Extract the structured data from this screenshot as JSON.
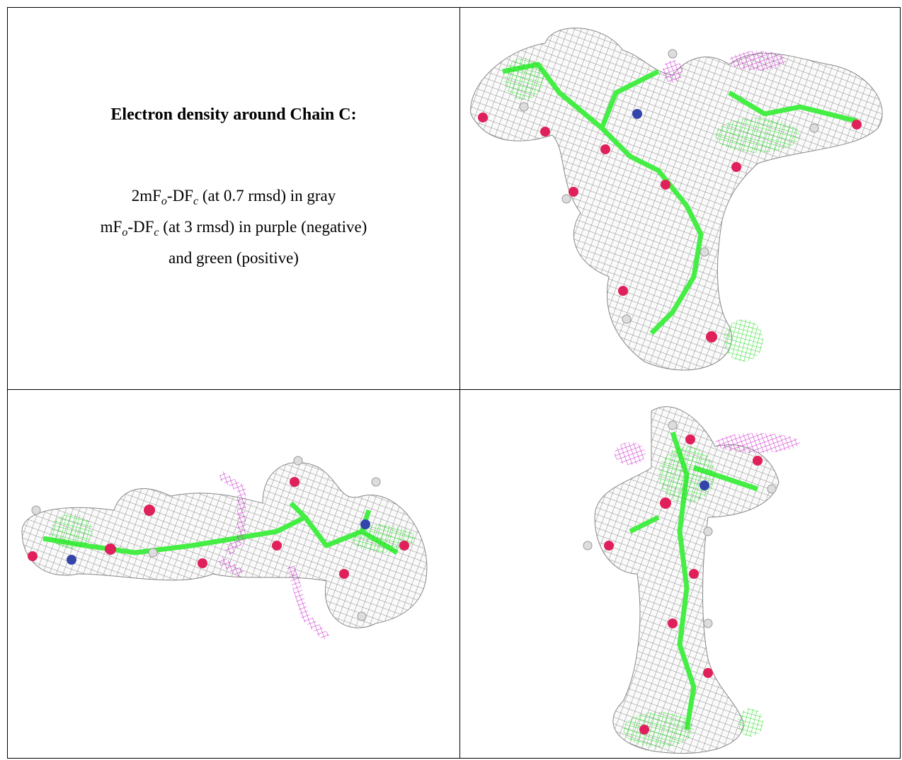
{
  "figure": {
    "title": "Electron density around Chain C:",
    "caption_lines": [
      [
        "2mF",
        "o",
        "-DF",
        "c",
        " (at 0.7 rmsd) in gray"
      ],
      [
        "mF",
        "o",
        "-DF",
        "c",
        " (at 3 rmsd) in purple (negative)"
      ],
      [
        "and green (positive)"
      ]
    ]
  }
}
